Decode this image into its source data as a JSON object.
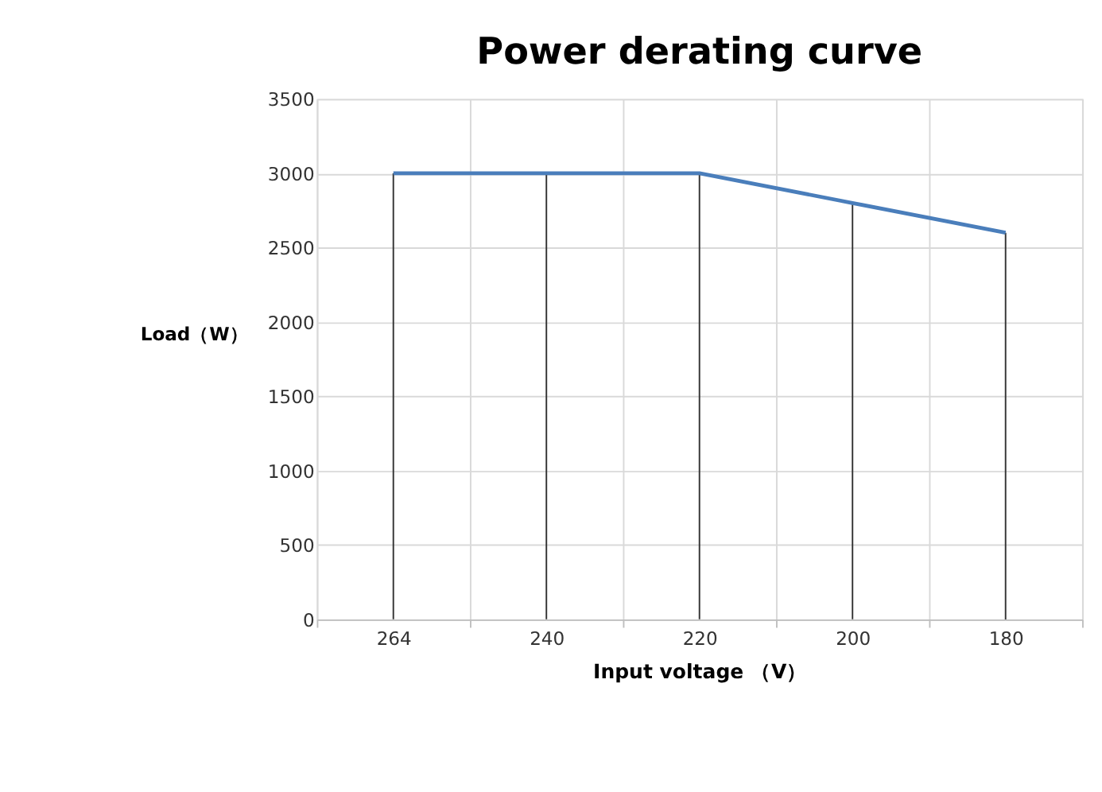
{
  "chart_data": {
    "type": "line",
    "title": "Power derating curve",
    "xlabel": "Input voltage （V）",
    "ylabel": "Load（W）",
    "categories": [
      "264",
      "240",
      "220",
      "200",
      "180"
    ],
    "series": [
      {
        "color": "#4a7ebb",
        "values": [
          3000,
          3000,
          3000,
          2800,
          2600
        ]
      }
    ],
    "ylim": [
      0,
      3500
    ],
    "yticks": [
      0,
      500,
      1000,
      1500,
      2000,
      2500,
      3000,
      3500
    ],
    "grid": true,
    "legend": false,
    "marker": "none",
    "line_style": "solid"
  }
}
